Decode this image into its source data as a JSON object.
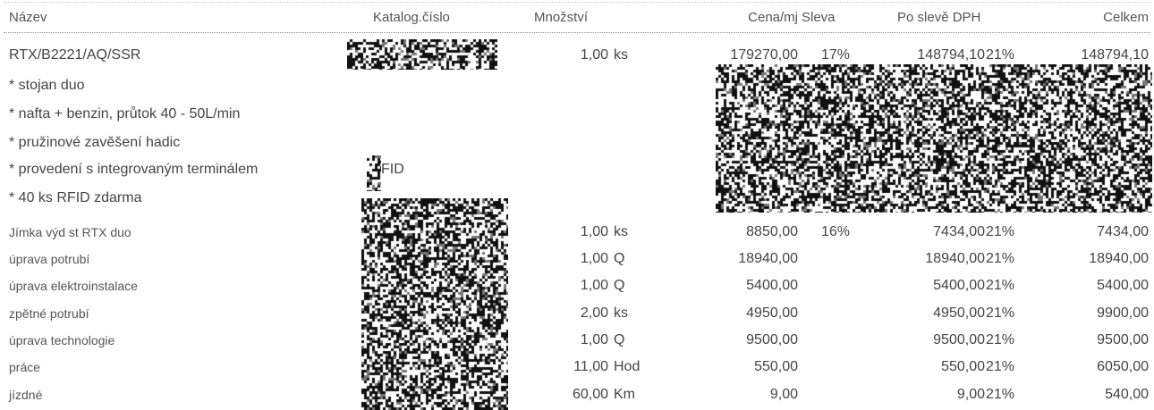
{
  "headers": {
    "name": "Název",
    "catalog": "Katalog.číslo",
    "qty": "Množství",
    "unit_price": "Cena/mj",
    "discount": "Sleva",
    "after_discount_vat": "Po slevě DPH",
    "total": "Celkem"
  },
  "rows": [
    {
      "name": "RTX/B2221/AQ/SSR",
      "qty": "1,00",
      "unit": "ks",
      "unit_price": "179270,00",
      "discount": "17%",
      "after_discount": "148794,10",
      "vat": "21%",
      "total": "148794,10"
    },
    {
      "name": "Jímka výd st RTX duo",
      "qty": "1,00",
      "unit": "ks",
      "unit_price": "8850,00",
      "discount": "16%",
      "after_discount": "7434,00",
      "vat": "21%",
      "total": "7434,00"
    },
    {
      "name": "úprava potrubí",
      "qty": "1,00",
      "unit": "Q",
      "unit_price": "18940,00",
      "discount": "",
      "after_discount": "18940,00",
      "vat": "21%",
      "total": "18940,00"
    },
    {
      "name": "úprava elektroinstalace",
      "qty": "1,00",
      "unit": "Q",
      "unit_price": "5400,00",
      "discount": "",
      "after_discount": "5400,00",
      "vat": "21%",
      "total": "5400,00"
    },
    {
      "name": "zpětné potrubí",
      "qty": "2,00",
      "unit": "ks",
      "unit_price": "4950,00",
      "discount": "",
      "after_discount": "4950,00",
      "vat": "21%",
      "total": "9900,00"
    },
    {
      "name": "úprava technologie",
      "qty": "1,00",
      "unit": "Q",
      "unit_price": "9500,00",
      "discount": "",
      "after_discount": "9500,00",
      "vat": "21%",
      "total": "9500,00"
    },
    {
      "name": "práce",
      "qty": "11,00",
      "unit": "Hod",
      "unit_price": "550,00",
      "discount": "",
      "after_discount": "550,00",
      "vat": "21%",
      "total": "6050,00"
    },
    {
      "name": "jízdné",
      "qty": "60,00",
      "unit": "Km",
      "unit_price": "9,00",
      "discount": "",
      "after_discount": "9,00",
      "vat": "21%",
      "total": "540,00"
    }
  ],
  "features": [
    "* stojan duo",
    "* nafta + benzin, průtok 40 - 50L/min",
    "* pružinové zavěšení hadic",
    "* provedení s integrovaným terminálem",
    "* 40 ks RFID zdarma"
  ],
  "feature_suffix": "FID"
}
